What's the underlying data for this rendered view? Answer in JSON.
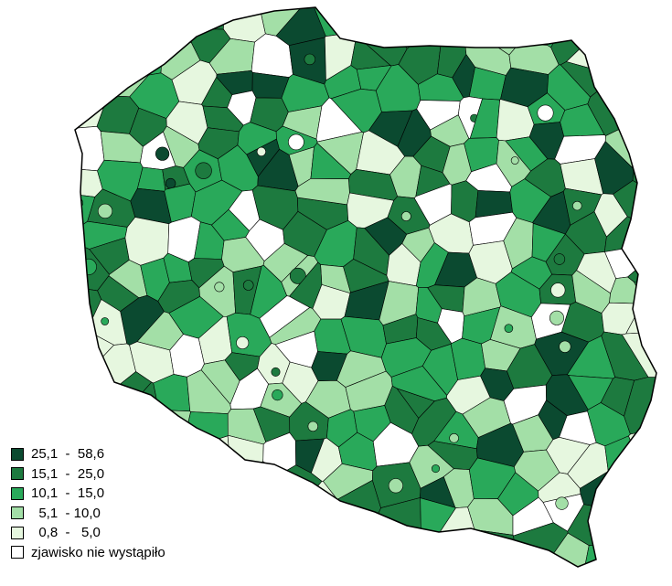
{
  "map": {
    "region_fill_order": [
      4,
      2,
      1,
      3,
      0,
      2,
      5,
      3,
      1,
      4,
      2,
      0,
      1,
      3,
      2,
      5,
      1,
      3,
      4,
      2,
      1,
      0,
      3,
      2,
      1,
      4,
      5,
      2,
      3,
      1
    ]
  },
  "legend": {
    "items": [
      {
        "label": "25,1  -  58,6",
        "color": "#0b4a30"
      },
      {
        "label": "15,1  -  25,0",
        "color": "#1d7a3f"
      },
      {
        "label": "10,1  -  15,0",
        "color": "#29a95a"
      },
      {
        "label": "  5,1  - 10,0",
        "color": "#a3dfa7"
      },
      {
        "label": "  0,8  -   5,0",
        "color": "#e6f7df"
      },
      {
        "label": "zjawisko nie wystąpiło",
        "color": "#ffffff"
      }
    ]
  }
}
